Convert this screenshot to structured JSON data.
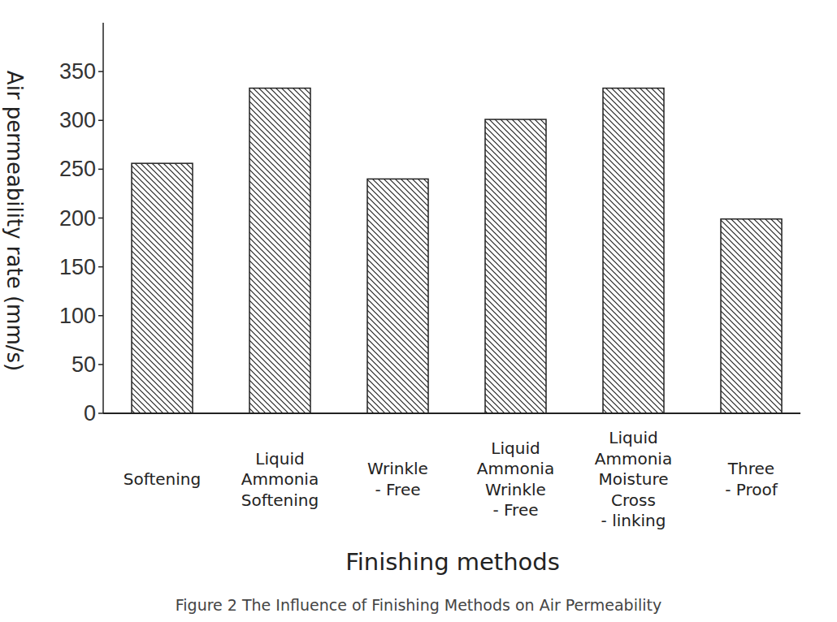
{
  "chart_data": {
    "type": "bar",
    "title": "Figure 2 The Influence of Finishing Methods on Air Permeability",
    "x_label": "Finishing methods",
    "y_label": "Air permeability rate (mm/s)",
    "categories": [
      "Softening",
      "Liquid\nAmmonia\nSoftening",
      "Wrinkle\n- Free",
      "Liquid\nAmmonia\nWrinkle\n- Free",
      "Liquid\nAmmonia\nMoisture\nCross\n- linking",
      "Three\n- Proof"
    ],
    "values": [
      256,
      333,
      240,
      301,
      333,
      199
    ],
    "color": "#222222",
    "ylim": [
      0,
      400
    ],
    "yticks": [
      0,
      50,
      100,
      150,
      200,
      250,
      300,
      350
    ],
    "grid": false
  }
}
